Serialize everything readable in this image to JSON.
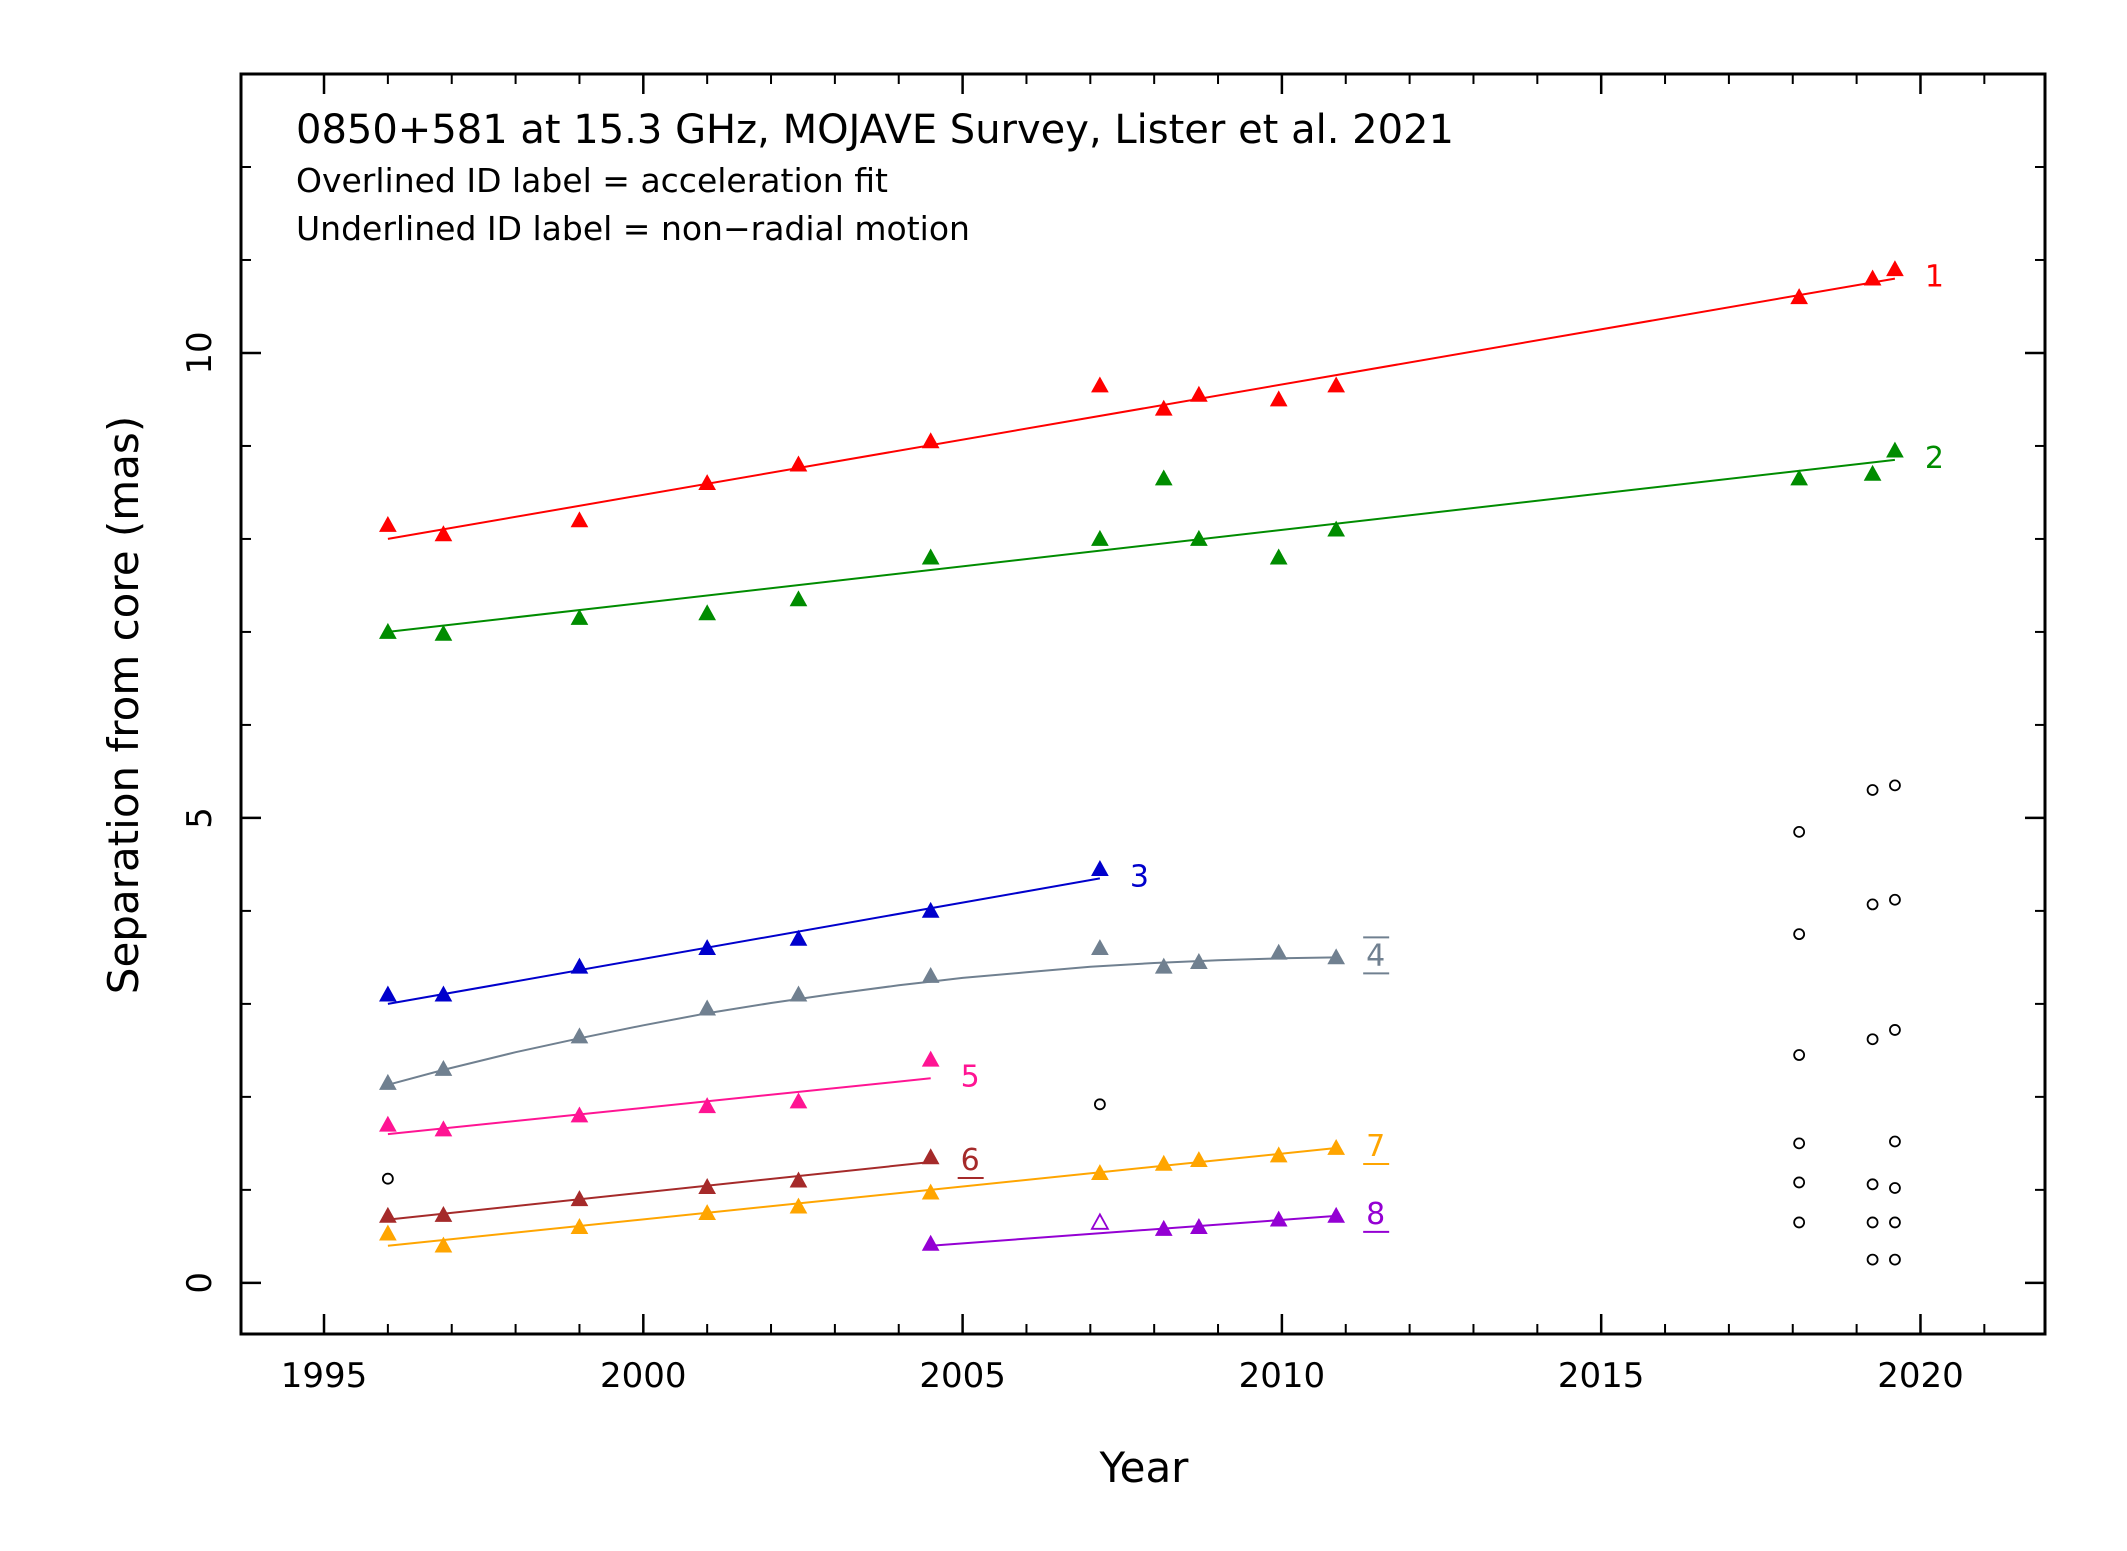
{
  "chart_data": {
    "type": "scatter",
    "title": "0850+581 at 15.3 GHz, MOJAVE Survey, Lister et al. 2021",
    "notes": [
      "Overlined ID label = acceleration fit",
      "Underlined ID label = non−radial motion"
    ],
    "xlabel": "Year",
    "ylabel": "Separation from core (mas)",
    "xlim": [
      1993.7,
      2021.95
    ],
    "ylim": [
      -0.55,
      13.0
    ],
    "xticks_major": [
      1995,
      2000,
      2005,
      2010,
      2015,
      2020
    ],
    "xticks_minor": [
      1996,
      1997,
      1998,
      1999,
      2001,
      2002,
      2003,
      2004,
      2006,
      2007,
      2008,
      2009,
      2011,
      2012,
      2013,
      2014,
      2016,
      2017,
      2018,
      2019,
      2021
    ],
    "yticks_major": [
      0,
      5,
      10
    ],
    "yticks_minor": [
      1,
      2,
      3,
      4,
      6,
      7,
      8,
      9,
      11,
      12
    ],
    "grid": false,
    "series": [
      {
        "name": "1",
        "color": "#ff0000",
        "label_style": "plain",
        "points": [
          [
            1996.0,
            8.15
          ],
          [
            1996.87,
            8.05
          ],
          [
            1999.0,
            8.2
          ],
          [
            2001.0,
            8.6
          ],
          [
            2002.43,
            8.8
          ],
          [
            2004.5,
            9.05
          ],
          [
            2007.15,
            9.65
          ],
          [
            2008.15,
            9.4
          ],
          [
            2008.7,
            9.55
          ],
          [
            2009.95,
            9.5
          ],
          [
            2010.85,
            9.65
          ],
          [
            2018.1,
            10.6
          ],
          [
            2019.25,
            10.8
          ],
          [
            2019.6,
            10.9
          ]
        ],
        "fit": [
          [
            1996.0,
            8.0
          ],
          [
            2019.6,
            10.8
          ]
        ]
      },
      {
        "name": "2",
        "color": "#008c00",
        "label_style": "plain",
        "points": [
          [
            1996.0,
            7.0
          ],
          [
            1996.87,
            6.98
          ],
          [
            1999.0,
            7.15
          ],
          [
            2001.0,
            7.2
          ],
          [
            2002.43,
            7.35
          ],
          [
            2004.5,
            7.8
          ],
          [
            2007.15,
            8.0
          ],
          [
            2008.15,
            8.65
          ],
          [
            2008.7,
            8.0
          ],
          [
            2009.95,
            7.8
          ],
          [
            2010.85,
            8.1
          ],
          [
            2018.1,
            8.65
          ],
          [
            2019.25,
            8.7
          ],
          [
            2019.6,
            8.95
          ]
        ],
        "fit": [
          [
            1996.0,
            7.0
          ],
          [
            2019.6,
            8.85
          ]
        ]
      },
      {
        "name": "3",
        "color": "#0000cc",
        "label_style": "plain",
        "points": [
          [
            1996.0,
            3.1
          ],
          [
            1996.87,
            3.1
          ],
          [
            1999.0,
            3.4
          ],
          [
            2001.0,
            3.6
          ],
          [
            2002.43,
            3.7
          ],
          [
            2004.5,
            4.0
          ],
          [
            2007.15,
            4.45
          ]
        ],
        "fit": [
          [
            1996.0,
            3.0
          ],
          [
            2007.15,
            4.35
          ]
        ]
      },
      {
        "name": "4",
        "color": "#708090",
        "label_style": "overline",
        "points": [
          [
            1996.0,
            2.15
          ],
          [
            1996.87,
            2.3
          ],
          [
            1999.0,
            2.65
          ],
          [
            2001.0,
            2.95
          ],
          [
            2002.43,
            3.1
          ],
          [
            2004.5,
            3.3
          ],
          [
            2007.15,
            3.6
          ],
          [
            2008.15,
            3.4
          ],
          [
            2008.7,
            3.45
          ],
          [
            2009.95,
            3.55
          ],
          [
            2010.85,
            3.5
          ]
        ],
        "fit": [
          [
            1996.0,
            2.13
          ],
          [
            1996.87,
            2.29
          ],
          [
            1998.0,
            2.48
          ],
          [
            1999.0,
            2.63
          ],
          [
            2000.0,
            2.77
          ],
          [
            2001.0,
            2.9
          ],
          [
            2002.0,
            3.01
          ],
          [
            2003.0,
            3.11
          ],
          [
            2004.0,
            3.2
          ],
          [
            2004.5,
            3.24
          ],
          [
            2005.0,
            3.28
          ],
          [
            2006.0,
            3.34
          ],
          [
            2007.0,
            3.4
          ],
          [
            2008.0,
            3.44
          ],
          [
            2009.0,
            3.47
          ],
          [
            2010.0,
            3.49
          ],
          [
            2010.85,
            3.5
          ]
        ]
      },
      {
        "name": "5",
        "color": "#ff1493",
        "label_style": "plain",
        "points": [
          [
            1996.0,
            1.7
          ],
          [
            1996.87,
            1.65
          ],
          [
            1999.0,
            1.8
          ],
          [
            2001.0,
            1.9
          ],
          [
            2002.43,
            1.95
          ],
          [
            2004.5,
            2.4
          ]
        ],
        "fit": [
          [
            1996.0,
            1.6
          ],
          [
            2004.5,
            2.2
          ]
        ]
      },
      {
        "name": "6",
        "color": "#a52a2a",
        "label_style": "underline",
        "points": [
          [
            1996.0,
            0.72
          ],
          [
            1996.87,
            0.73
          ],
          [
            1999.0,
            0.9
          ],
          [
            2001.0,
            1.03
          ],
          [
            2002.43,
            1.1
          ],
          [
            2004.5,
            1.35
          ]
        ],
        "fit": [
          [
            1996.0,
            0.68
          ],
          [
            2004.5,
            1.3
          ]
        ]
      },
      {
        "name": "7",
        "color": "#ffa500",
        "label_style": "underline",
        "points": [
          [
            1996.0,
            0.53
          ],
          [
            1996.87,
            0.4
          ],
          [
            1999.0,
            0.6
          ],
          [
            2001.0,
            0.75
          ],
          [
            2002.43,
            0.82
          ],
          [
            2004.5,
            0.97
          ],
          [
            2007.15,
            1.18
          ],
          [
            2008.15,
            1.28
          ],
          [
            2008.7,
            1.32
          ],
          [
            2009.95,
            1.37
          ],
          [
            2010.85,
            1.45
          ]
        ],
        "fit": [
          [
            1996.0,
            0.4
          ],
          [
            2010.85,
            1.45
          ]
        ]
      },
      {
        "name": "8",
        "color": "#9400d3",
        "label_style": "underline",
        "points": [
          [
            2004.5,
            0.42
          ],
          [
            2008.15,
            0.58
          ],
          [
            2008.7,
            0.6
          ],
          [
            2009.95,
            0.68
          ],
          [
            2010.85,
            0.72
          ]
        ],
        "open_points": [
          [
            2007.15,
            0.65
          ]
        ],
        "fit": [
          [
            2004.5,
            0.4
          ],
          [
            2010.85,
            0.72
          ]
        ]
      }
    ],
    "unassociated_points": {
      "color": "#000000",
      "marker": "open-circle",
      "points": [
        [
          1996.0,
          1.12
        ],
        [
          2007.15,
          1.92
        ],
        [
          2018.1,
          4.85
        ],
        [
          2018.1,
          3.75
        ],
        [
          2018.1,
          2.45
        ],
        [
          2018.1,
          1.5
        ],
        [
          2018.1,
          1.08
        ],
        [
          2018.1,
          0.65
        ],
        [
          2019.25,
          5.3
        ],
        [
          2019.25,
          4.07
        ],
        [
          2019.25,
          2.62
        ],
        [
          2019.25,
          1.06
        ],
        [
          2019.25,
          0.65
        ],
        [
          2019.25,
          0.25
        ],
        [
          2019.6,
          5.35
        ],
        [
          2019.6,
          4.12
        ],
        [
          2019.6,
          2.72
        ],
        [
          2019.6,
          1.52
        ],
        [
          2019.6,
          1.02
        ],
        [
          2019.6,
          0.65
        ],
        [
          2019.6,
          0.25
        ]
      ]
    }
  }
}
